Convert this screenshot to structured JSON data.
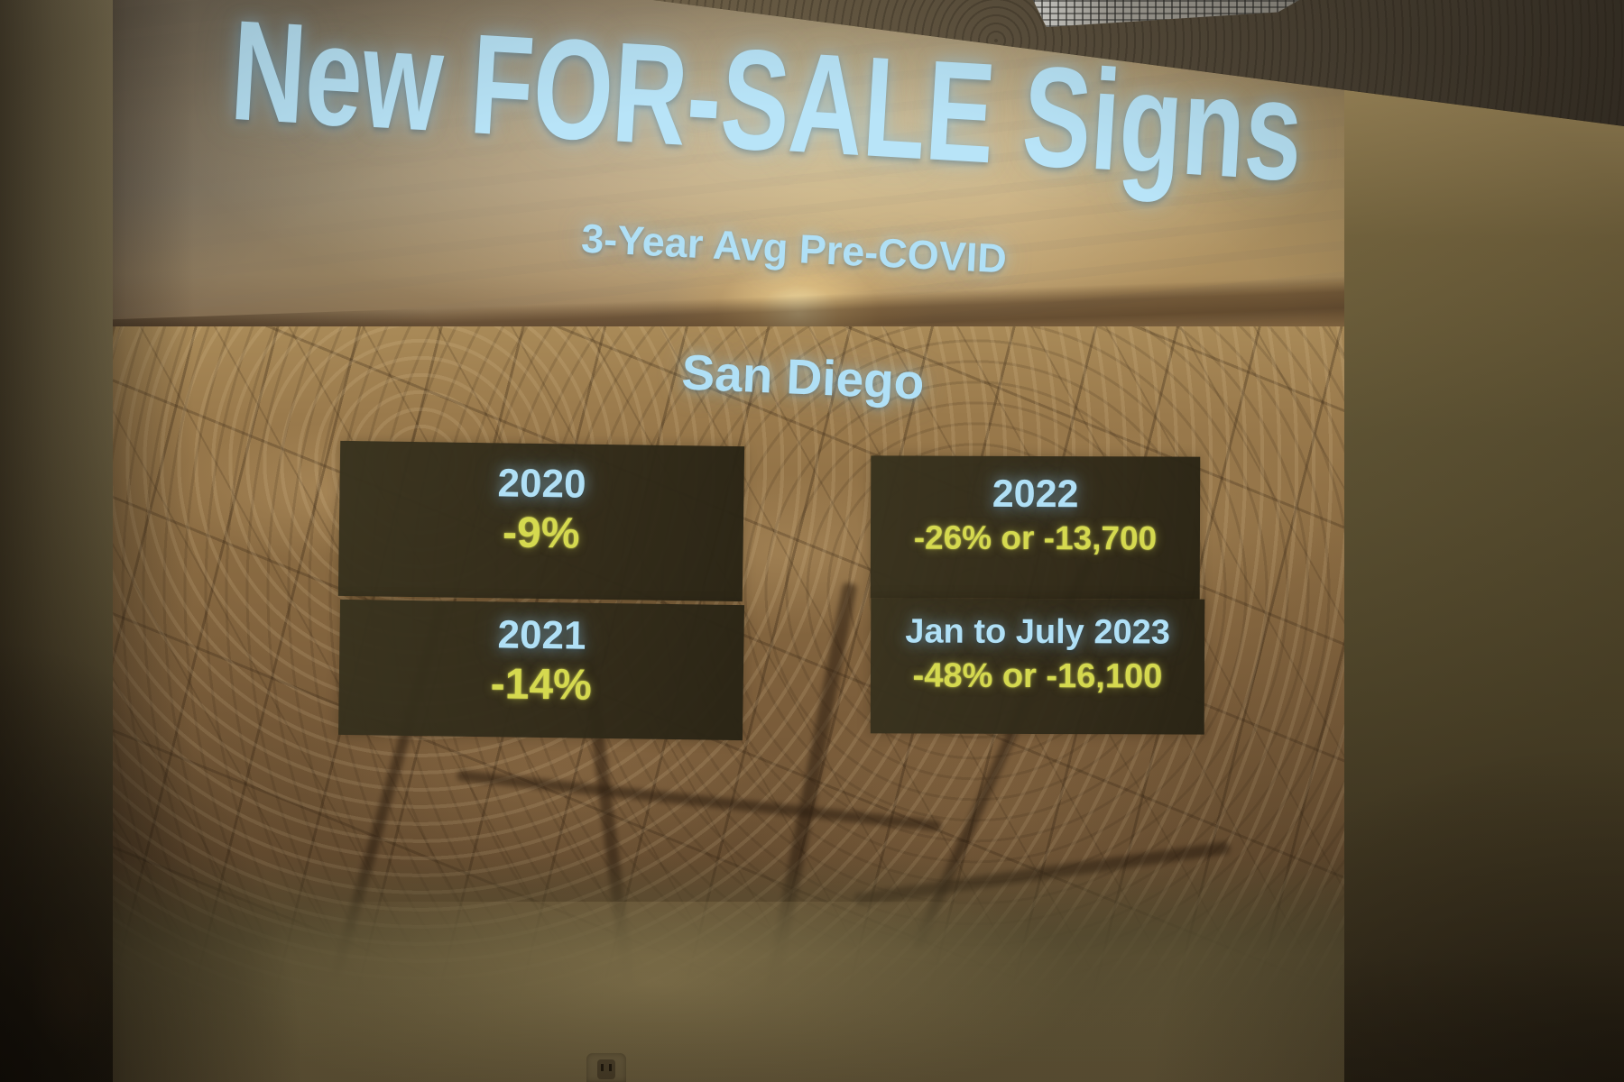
{
  "slide": {
    "title": "New FOR-SALE Signs",
    "subtitle": "3-Year Avg Pre-COVID",
    "region": "San Diego",
    "stats": [
      {
        "period": "2020",
        "change": "-9%"
      },
      {
        "period": "2021",
        "change": "-14%"
      },
      {
        "period": "2022",
        "change": "-26% or -13,700"
      },
      {
        "period": "Jan to July 2023",
        "change": "-48% or -16,100"
      }
    ],
    "colors": {
      "heading_text": "#b0e0f6",
      "value_text": "#d5d94f",
      "stat_box_background": "#38321e",
      "slide_backdrop": "#a8936a"
    }
  }
}
